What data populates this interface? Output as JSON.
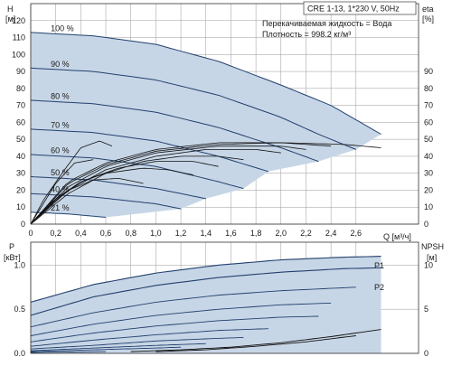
{
  "chart_data": [
    {
      "type": "line",
      "title": "CRE 1-13, 1*230 V, 50Hz",
      "annotations": [
        "Перекачиваемая жидкость = Вода",
        "Плотность = 998.2 кг/м³"
      ],
      "xlabel": "Q [м³/ч]",
      "ylabel": "H [м]",
      "ylabel_lines": [
        "H",
        "[м]"
      ],
      "y2label": "eta [%]",
      "y2label_lines": [
        "eta",
        "[%]"
      ],
      "x_ticks": [
        "0",
        "0,2",
        "0,4",
        "0,6",
        "0,8",
        "1,0",
        "1,2",
        "1,4",
        "1,6",
        "1,8",
        "2,0",
        "2,2",
        "2,4",
        "2,6"
      ],
      "y_ticks": [
        "0",
        "10",
        "20",
        "30",
        "40",
        "50",
        "60",
        "70",
        "80",
        "90",
        "100",
        "110",
        "120"
      ],
      "y2_ticks": [
        "0",
        "10",
        "20",
        "30",
        "40",
        "50",
        "60",
        "70",
        "80",
        "90"
      ],
      "xlim": [
        0,
        3.1
      ],
      "ylim": [
        0,
        130
      ],
      "y2lim": [
        0,
        130
      ],
      "grid": true,
      "colors": {
        "curve": "#22406e",
        "area": "#c7d6e6",
        "eta": "#111111",
        "grid": "#9a9a9a"
      },
      "series": [
        {
          "name": "100 %",
          "x": [
            0,
            0.5,
            1.0,
            1.5,
            2.0,
            2.4,
            2.8
          ],
          "values": [
            113,
            111,
            106,
            96,
            82,
            70,
            53
          ]
        },
        {
          "name": "90 %",
          "x": [
            0,
            0.5,
            1.0,
            1.5,
            2.0,
            2.3,
            2.6
          ],
          "values": [
            92,
            90,
            85,
            76,
            63,
            53,
            44
          ]
        },
        {
          "name": "80 %",
          "x": [
            0,
            0.5,
            1.0,
            1.5,
            2.0,
            2.3
          ],
          "values": [
            73,
            71,
            66,
            57,
            45,
            37
          ]
        },
        {
          "name": "70 %",
          "x": [
            0,
            0.5,
            1.0,
            1.5,
            1.9
          ],
          "values": [
            56,
            54,
            49,
            40,
            31
          ]
        },
        {
          "name": "60 %",
          "x": [
            0,
            0.5,
            1.0,
            1.5,
            1.7
          ],
          "values": [
            41,
            39,
            34,
            25,
            21
          ]
        },
        {
          "name": "50 %",
          "x": [
            0,
            0.5,
            1.0,
            1.4
          ],
          "values": [
            28,
            26,
            21,
            15
          ]
        },
        {
          "name": "40 %",
          "x": [
            0,
            0.5,
            1.0,
            1.2
          ],
          "values": [
            18,
            16,
            12,
            9
          ]
        },
        {
          "name": "21 %",
          "x": [
            0,
            0.3,
            0.6
          ],
          "values": [
            7,
            6,
            4
          ]
        }
      ],
      "labels_shown": [
        "100 %",
        "90 %",
        "80 %",
        "70 %",
        "60 %",
        "50 %",
        "40 %",
        "21 %"
      ],
      "eta_curves": [
        {
          "x": [
            0,
            0.3,
            0.6,
            1.0,
            1.5,
            2.0,
            2.5,
            2.8
          ],
          "values": [
            0,
            25,
            36,
            44,
            48,
            48,
            47,
            45
          ]
        },
        {
          "x": [
            0,
            0.3,
            0.6,
            1.0,
            1.5,
            2.0,
            2.4
          ],
          "values": [
            0,
            24,
            35,
            43,
            47,
            48,
            46
          ]
        },
        {
          "x": [
            0,
            0.3,
            0.6,
            1.0,
            1.5,
            2.0,
            2.2
          ],
          "values": [
            0,
            22,
            34,
            42,
            46,
            46,
            44
          ]
        },
        {
          "x": [
            0,
            0.3,
            0.6,
            1.0,
            1.4,
            1.8,
            2.0
          ],
          "values": [
            0,
            20,
            32,
            40,
            44,
            44,
            42
          ]
        },
        {
          "x": [
            0,
            0.3,
            0.6,
            0.9,
            1.2,
            1.5,
            1.7
          ],
          "values": [
            0,
            18,
            30,
            37,
            40,
            40,
            38
          ]
        },
        {
          "x": [
            0,
            0.2,
            0.4,
            0.7,
            1.0,
            1.3,
            1.5
          ],
          "values": [
            0,
            14,
            25,
            33,
            37,
            37,
            34
          ]
        },
        {
          "x": [
            0,
            0.2,
            0.4,
            0.6,
            0.9,
            1.1,
            1.3
          ],
          "values": [
            0,
            15,
            25,
            30,
            33,
            32,
            29
          ]
        },
        {
          "x": [
            0,
            0.15,
            0.3,
            0.5,
            0.7,
            0.9
          ],
          "values": [
            0,
            12,
            20,
            26,
            27,
            24
          ]
        },
        {
          "x": [
            0,
            0.1,
            0.25,
            0.4,
            0.55,
            0.65
          ],
          "values": [
            0,
            14,
            30,
            45,
            49,
            46
          ]
        },
        {
          "x": [
            0,
            0.1,
            0.2,
            0.35,
            0.5
          ],
          "values": [
            0,
            12,
            24,
            36,
            38
          ]
        }
      ]
    },
    {
      "type": "line",
      "ylabel": "P [кВт]",
      "ylabel_lines": [
        "P",
        "[кВт]"
      ],
      "y2label": "NPSH [м]",
      "y2label_lines": [
        "NPSH",
        "[м]"
      ],
      "y_ticks": [
        "0.0",
        "0.5",
        "1.0"
      ],
      "y2_ticks": [
        "0",
        "5",
        "10"
      ],
      "xlim": [
        0,
        3.1
      ],
      "ylim": [
        0,
        1.26
      ],
      "y2lim": [
        0,
        12.6
      ],
      "grid": true,
      "series": [
        {
          "name": "P1",
          "x": [
            0,
            0.5,
            1.0,
            1.5,
            2.0,
            2.5,
            2.8
          ],
          "values": [
            0.58,
            0.78,
            0.91,
            1.0,
            1.06,
            1.09,
            1.1
          ]
        },
        {
          "name": "P2",
          "x": [
            0,
            0.5,
            1.0,
            1.5,
            2.0,
            2.5,
            2.8
          ],
          "values": [
            0.43,
            0.64,
            0.77,
            0.86,
            0.92,
            0.96,
            0.97
          ]
        },
        {
          "name": "",
          "x": [
            0,
            0.5,
            1.0,
            1.5,
            2.0,
            2.6
          ],
          "values": [
            0.3,
            0.46,
            0.58,
            0.66,
            0.71,
            0.75
          ]
        },
        {
          "name": "",
          "x": [
            0,
            0.5,
            1.0,
            1.5,
            2.0,
            2.4
          ],
          "values": [
            0.2,
            0.33,
            0.43,
            0.5,
            0.55,
            0.57
          ]
        },
        {
          "name": "",
          "x": [
            0,
            0.5,
            1.0,
            1.5,
            2.0,
            2.3
          ],
          "values": [
            0.13,
            0.23,
            0.31,
            0.37,
            0.41,
            0.42
          ]
        },
        {
          "name": "",
          "x": [
            0,
            0.5,
            1.0,
            1.5,
            1.9
          ],
          "values": [
            0.08,
            0.15,
            0.21,
            0.26,
            0.28
          ]
        },
        {
          "name": "",
          "x": [
            0,
            0.5,
            1.0,
            1.5,
            1.7
          ],
          "values": [
            0.05,
            0.09,
            0.14,
            0.17,
            0.18
          ]
        },
        {
          "name": "",
          "x": [
            0,
            0.5,
            1.0,
            1.4
          ],
          "values": [
            0.03,
            0.06,
            0.09,
            0.11
          ]
        },
        {
          "name": "",
          "x": [
            0,
            0.5,
            1.0,
            1.2
          ],
          "values": [
            0.02,
            0.04,
            0.06,
            0.07
          ]
        },
        {
          "name": "",
          "x": [
            0,
            0.3,
            0.6
          ],
          "values": [
            0.01,
            0.015,
            0.02
          ]
        }
      ],
      "npsh_curves": [
        {
          "x": [
            0.8,
            1.2,
            1.6,
            2.0,
            2.4,
            2.8
          ],
          "values": [
            0.2,
            0.4,
            0.7,
            1.2,
            1.9,
            2.7
          ]
        },
        {
          "x": [
            1.0,
            1.4,
            1.8,
            2.2,
            2.6
          ],
          "values": [
            0.2,
            0.4,
            0.8,
            1.3,
            2.0
          ]
        }
      ]
    }
  ]
}
